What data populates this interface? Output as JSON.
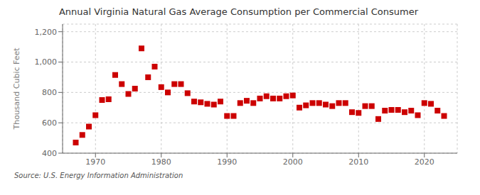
{
  "chart_data": {
    "type": "scatter",
    "title": "Annual Virginia Natural Gas Average Consumption per Commercial Consumer",
    "y_label": "Thousand Cubic Feet",
    "annotations": [
      "Source: U.S. Energy Information Administration"
    ],
    "x": [
      1967,
      1968,
      1969,
      1970,
      1971,
      1972,
      1973,
      1974,
      1975,
      1976,
      1977,
      1978,
      1979,
      1980,
      1981,
      1982,
      1983,
      1984,
      1985,
      1986,
      1987,
      1988,
      1989,
      1990,
      1991,
      1992,
      1993,
      1994,
      1995,
      1996,
      1997,
      1998,
      1999,
      2000,
      2001,
      2002,
      2003,
      2004,
      2005,
      2006,
      2007,
      2008,
      2009,
      2010,
      2011,
      2012,
      2013,
      2014,
      2015,
      2016,
      2017,
      2018,
      2019,
      2020,
      2021,
      2022,
      2023
    ],
    "values": [
      470,
      520,
      575,
      650,
      750,
      755,
      915,
      855,
      790,
      825,
      1090,
      900,
      970,
      835,
      800,
      855,
      855,
      795,
      740,
      735,
      725,
      720,
      740,
      645,
      645,
      730,
      745,
      730,
      760,
      775,
      760,
      760,
      775,
      780,
      700,
      715,
      730,
      730,
      720,
      710,
      730,
      730,
      670,
      665,
      710,
      710,
      625,
      680,
      685,
      685,
      670,
      680,
      650,
      730,
      725,
      680,
      645
    ],
    "color": "#cc0000",
    "marker": "square",
    "grid": true,
    "xlim": [
      1965,
      2025
    ],
    "xticks": [
      1970,
      1980,
      1990,
      2000,
      2010,
      2020
    ],
    "ylim": [
      400,
      1250
    ],
    "yticks": [
      400,
      600,
      800,
      {
        "value": 1000,
        "label": "1,000"
      },
      {
        "value": 1200,
        "label": "1,200"
      }
    ]
  }
}
